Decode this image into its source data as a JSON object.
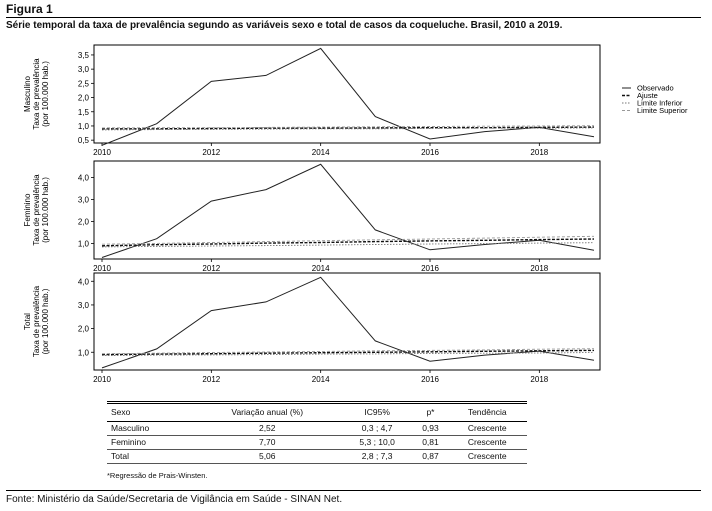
{
  "figure": {
    "label": "Figura 1",
    "title": "Série temporal da taxa de prevalência segundo as variáveis sexo e total de casos da coqueluche. Brasil, 2010 a 2019."
  },
  "legend": {
    "items": [
      "Observado",
      "Ajuste",
      "Limite Inferior",
      "Limite Superior"
    ],
    "position": "right of first panel"
  },
  "chart_data": [
    {
      "type": "line",
      "panel": "Masculino",
      "ylabel": [
        "Masculino",
        "Taxa de prevalência",
        "(por 100.000 hab.)"
      ],
      "x": [
        2010,
        2011,
        2012,
        2013,
        2014,
        2015,
        2016,
        2017,
        2018,
        2019
      ],
      "xticks": [
        "2010",
        "2012",
        "2014",
        "2016",
        "2018"
      ],
      "yticks": [
        "0,5",
        "1,0",
        "1,5",
        "2,0",
        "2,5",
        "3,0",
        "3,5"
      ],
      "ylim": [
        0.4,
        3.85
      ],
      "series": [
        {
          "name": "Observado",
          "values": [
            0.32,
            1.08,
            2.57,
            2.78,
            3.73,
            1.33,
            0.54,
            0.8,
            0.95,
            0.62
          ]
        },
        {
          "name": "Ajuste",
          "values": [
            0.9,
            0.9,
            0.91,
            0.92,
            0.92,
            0.93,
            0.94,
            0.94,
            0.95,
            0.96
          ]
        },
        {
          "name": "Limite Inferior",
          "values": [
            0.86,
            0.87,
            0.88,
            0.89,
            0.9,
            0.9,
            0.91,
            0.92,
            0.92,
            0.93
          ]
        },
        {
          "name": "Limite Superior",
          "values": [
            0.93,
            0.94,
            0.94,
            0.95,
            0.96,
            0.97,
            0.98,
            0.99,
            1.0,
            1.01
          ]
        }
      ]
    },
    {
      "type": "line",
      "panel": "Feminino",
      "ylabel": [
        "Feminino",
        "Taxa de prevalência",
        "(por 100.000 hab.)"
      ],
      "x": [
        2010,
        2011,
        2012,
        2013,
        2014,
        2015,
        2016,
        2017,
        2018,
        2019
      ],
      "xticks": [
        "2010",
        "2012",
        "2014",
        "2016",
        "2018"
      ],
      "yticks": [
        "1,0",
        "2,0",
        "3,0",
        "4,0"
      ],
      "ylim": [
        0.3,
        4.75
      ],
      "series": [
        {
          "name": "Observado",
          "values": [
            0.37,
            1.22,
            2.93,
            3.45,
            4.6,
            1.62,
            0.72,
            0.96,
            1.15,
            0.7
          ]
        },
        {
          "name": "Ajuste",
          "values": [
            0.9,
            0.95,
            0.98,
            1.02,
            1.05,
            1.09,
            1.12,
            1.15,
            1.18,
            1.21
          ]
        },
        {
          "name": "Limite Inferior",
          "values": [
            0.85,
            0.87,
            0.89,
            0.91,
            0.93,
            0.96,
            0.98,
            1.0,
            1.02,
            1.04
          ]
        },
        {
          "name": "Limite Superior",
          "values": [
            0.97,
            1.01,
            1.05,
            1.09,
            1.13,
            1.17,
            1.21,
            1.25,
            1.29,
            1.33
          ]
        }
      ]
    },
    {
      "type": "line",
      "panel": "Total",
      "ylabel": [
        "Total",
        "Taxa de prevalência",
        "(por 100.000 hab.)"
      ],
      "x": [
        2010,
        2011,
        2012,
        2013,
        2014,
        2015,
        2016,
        2017,
        2018,
        2019
      ],
      "xticks": [
        "2010",
        "2012",
        "2014",
        "2016",
        "2018"
      ],
      "yticks": [
        "1,0",
        "2,0",
        "3,0",
        "4,0"
      ],
      "ylim": [
        0.25,
        4.35
      ],
      "series": [
        {
          "name": "Observado",
          "values": [
            0.34,
            1.14,
            2.76,
            3.13,
            4.17,
            1.48,
            0.62,
            0.88,
            1.05,
            0.66
          ]
        },
        {
          "name": "Ajuste",
          "values": [
            0.9,
            0.92,
            0.94,
            0.96,
            0.98,
            1.0,
            1.02,
            1.04,
            1.06,
            1.08
          ]
        },
        {
          "name": "Limite Inferior",
          "values": [
            0.86,
            0.88,
            0.89,
            0.9,
            0.92,
            0.93,
            0.95,
            0.96,
            0.97,
            0.99
          ]
        },
        {
          "name": "Limite Superior",
          "values": [
            0.94,
            0.96,
            0.99,
            1.01,
            1.03,
            1.06,
            1.08,
            1.1,
            1.13,
            1.15
          ]
        }
      ]
    }
  ],
  "table": {
    "headers": [
      "Sexo",
      "Variação anual (%)",
      "IC95%",
      "p*",
      "Tendência"
    ],
    "rows": [
      [
        "Masculino",
        "2,52",
        "0,3 ; 4,7",
        "0,93",
        "Crescente"
      ],
      [
        "Feminino",
        "7,70",
        "5,3 ; 10,0",
        "0,81",
        "Crescente"
      ],
      [
        "Total",
        "5,06",
        "2,8 ; 7,3",
        "0,87",
        "Crescente"
      ]
    ]
  },
  "footnote": "*Regressão de Prais-Winsten.",
  "source": "Fonte: Ministério da Saúde/Secretaria de Vigilância em Saúde - SINAN Net."
}
